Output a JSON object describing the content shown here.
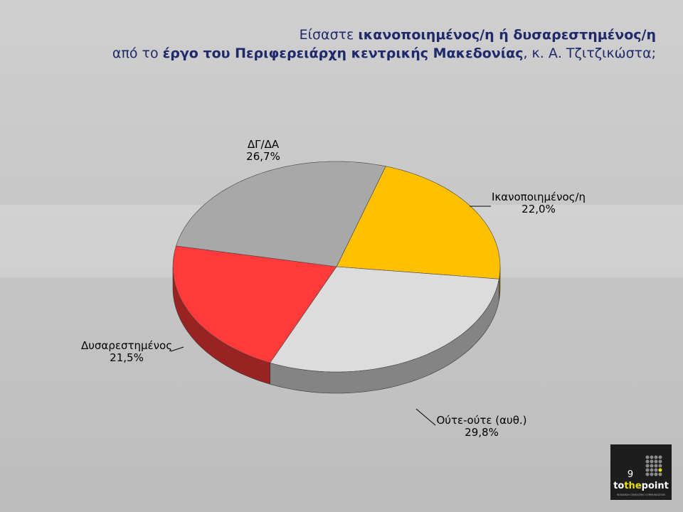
{
  "title_lines": [
    [
      {
        "text": "Είσαστε ",
        "bold": false
      },
      {
        "text": "ικανοποιημένος/η ή δυσαρεστημένος/η",
        "bold": true
      }
    ],
    [
      {
        "text": "από το ",
        "bold": false
      },
      {
        "text": "έργο του Περιφερειάρχη κεντρικής Μακεδονίας",
        "bold": true
      },
      {
        "text": ", κ. Α. Τζιτζικώστα;",
        "bold": false
      }
    ]
  ],
  "chart_data": {
    "type": "pie",
    "categories": [
      "Ικανοποιημένος/η",
      "Ούτε-ούτε (αυθ.)",
      "Δυσαρεστημένος",
      "ΔΓ/ΔΑ"
    ],
    "values": [
      22.0,
      29.8,
      21.5,
      26.7
    ],
    "value_labels": [
      "22,0%",
      "29,8%",
      "21,5%",
      "26,7%"
    ],
    "colors": [
      "#ffc000",
      "#dcdcdc",
      "#ff3a3a",
      "#a8a8a8"
    ]
  },
  "footer": {
    "page_number": "9",
    "logo": [
      "to",
      "the",
      "point"
    ],
    "tagline": "RESEARCH CONSULTING COMMUNICATION"
  }
}
